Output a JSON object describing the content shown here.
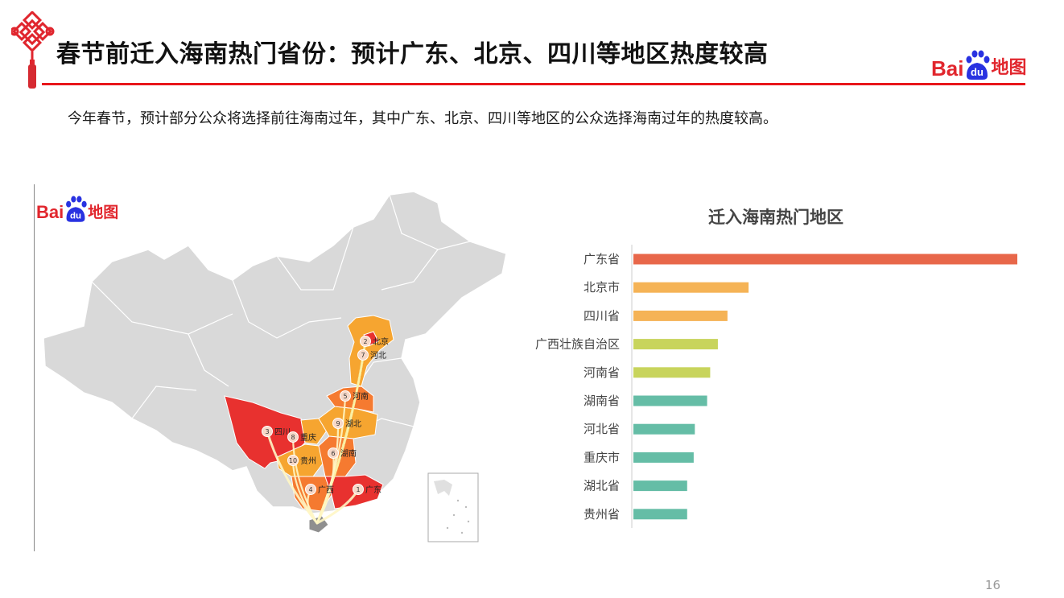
{
  "header": {
    "title": "春节前迁入海南热门省份：预计广东、北京、四川等地区热度较高",
    "logo_text": "Bai",
    "logo_paw_text": "du",
    "logo_suffix": "地图",
    "knot_icon": "chinese-knot-icon",
    "accent_color": "#e8161b"
  },
  "intro": "今年春节，预计部分公众将选择前往海南过年，其中广东、北京、四川等地区的公众选择海南过年的热度较高。",
  "map": {
    "logo_text": "Bai",
    "logo_paw_text": "du",
    "logo_suffix": "地图",
    "provinces": [
      {
        "rank": "1",
        "name": "广东"
      },
      {
        "rank": "2",
        "name": "北京"
      },
      {
        "rank": "3",
        "name": "四川"
      },
      {
        "rank": "4",
        "name": "广西"
      },
      {
        "rank": "5",
        "name": "河南"
      },
      {
        "rank": "6",
        "name": "湖南"
      },
      {
        "rank": "7",
        "name": "河北"
      },
      {
        "rank": "8",
        "name": "重庆"
      },
      {
        "rank": "9",
        "name": "湖北"
      },
      {
        "rank": "10",
        "name": "贵州"
      }
    ]
  },
  "chart_data": {
    "type": "bar",
    "orientation": "horizontal",
    "title": "迁入海南热门地区",
    "categories": [
      "广东省",
      "北京市",
      "四川省",
      "广西壮族自治区",
      "河南省",
      "湖南省",
      "河北省",
      "重庆市",
      "湖北省",
      "贵州省"
    ],
    "values": [
      100,
      30,
      24.5,
      22,
      20,
      19.2,
      16,
      15.7,
      14,
      14
    ],
    "colors": [
      "#e8674a",
      "#f5b356",
      "#f5b356",
      "#c8d45c",
      "#c8d45c",
      "#65bda6",
      "#65bda6",
      "#65bda6",
      "#65bda6",
      "#65bda6"
    ],
    "xlim": [
      0,
      100
    ],
    "xlabel": "",
    "ylabel": "",
    "grid": false,
    "legend": "none"
  },
  "footer": {
    "page_number": "16"
  }
}
